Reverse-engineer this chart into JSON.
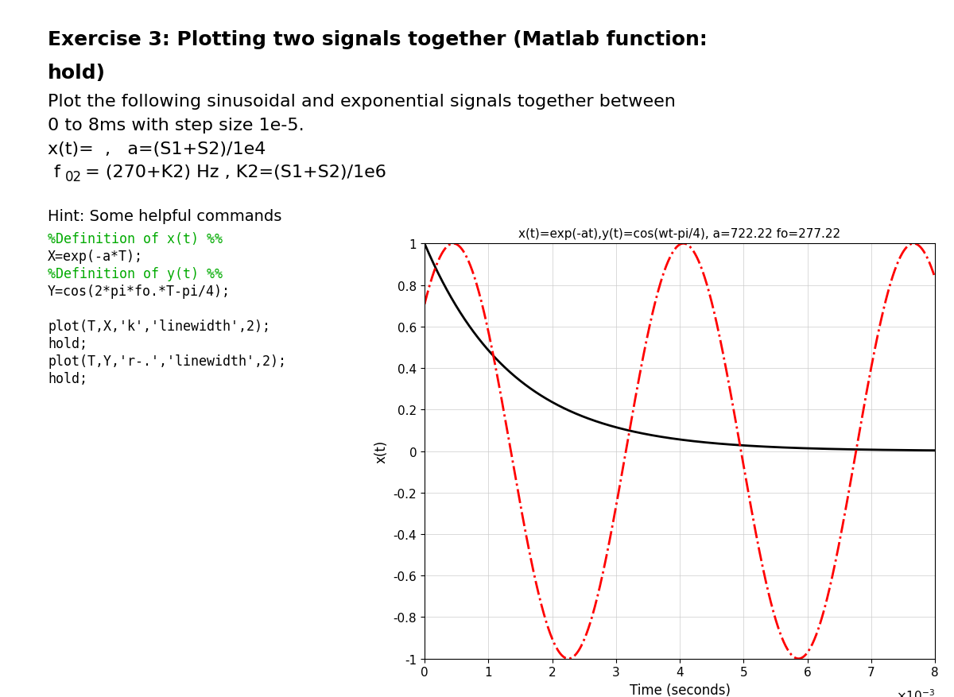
{
  "plot_title": "x(t)=exp(-at),y(t)=cos(wt-pi/4), a=722.22 fo=277.22",
  "xlabel": "Time (seconds)",
  "ylabel": "x(t)",
  "xlim": [
    0,
    0.008
  ],
  "ylim": [
    -1,
    1
  ],
  "xticks": [
    0,
    0.001,
    0.002,
    0.003,
    0.004,
    0.005,
    0.006,
    0.007,
    0.008
  ],
  "xtick_labels": [
    "0",
    "1",
    "2",
    "3",
    "4",
    "5",
    "6",
    "7",
    "8"
  ],
  "yticks": [
    -1,
    -0.8,
    -0.6,
    -0.4,
    -0.2,
    0,
    0.2,
    0.4,
    0.6,
    0.8,
    1
  ],
  "a": 722.22,
  "fo": 277.22,
  "bg_color": "#ffffff",
  "text_color": "#000000",
  "code_color": "#00aa00",
  "exp_line_color": "#000000",
  "cos_line_color": "#ff0000"
}
